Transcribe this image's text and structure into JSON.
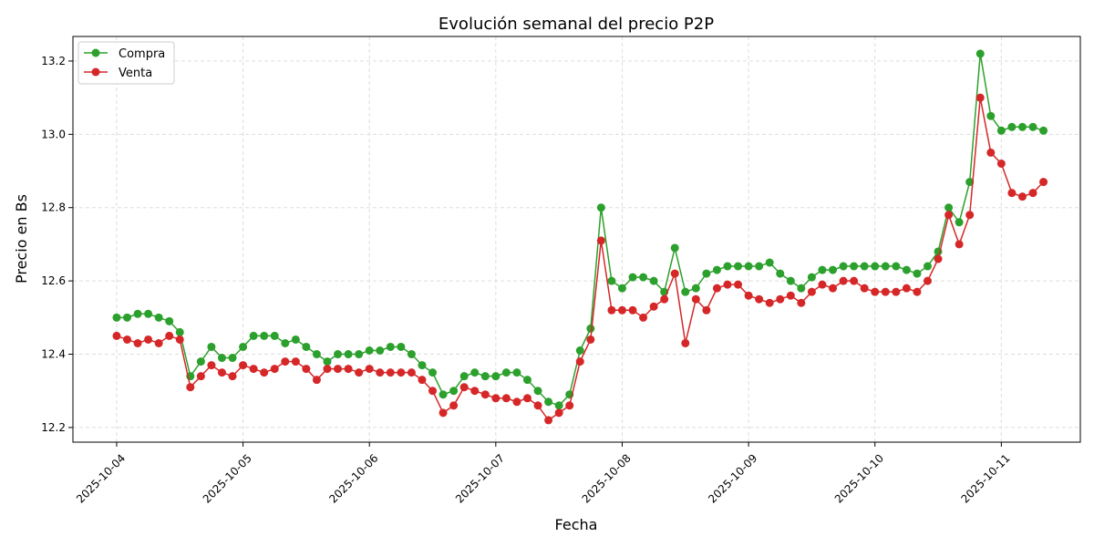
{
  "chart_data": {
    "type": "line",
    "title": "Evolución semanal del precio P2P",
    "xlabel": "Fecha",
    "ylabel": "Precio en Bs",
    "xlim": [
      "2025-10-03 15:42",
      "2025-10-11 15:00"
    ],
    "ylim": [
      12.16,
      13.267
    ],
    "grid": true,
    "legend_position": "top-left",
    "x_ticks": [
      "2025-10-04",
      "2025-10-05",
      "2025-10-06",
      "2025-10-07",
      "2025-10-08",
      "2025-10-09",
      "2025-10-10",
      "2025-10-11"
    ],
    "y_ticks": [
      12.2,
      12.4,
      12.6,
      12.8,
      13.0,
      13.2
    ],
    "x": [
      "2025-10-04 00:00",
      "2025-10-04 02:00",
      "2025-10-04 04:00",
      "2025-10-04 06:00",
      "2025-10-04 08:00",
      "2025-10-04 10:00",
      "2025-10-04 12:00",
      "2025-10-04 14:00",
      "2025-10-04 16:00",
      "2025-10-04 18:00",
      "2025-10-04 20:00",
      "2025-10-04 22:00",
      "2025-10-05 00:00",
      "2025-10-05 02:00",
      "2025-10-05 04:00",
      "2025-10-05 06:00",
      "2025-10-05 08:00",
      "2025-10-05 10:00",
      "2025-10-05 12:00",
      "2025-10-05 14:00",
      "2025-10-05 16:00",
      "2025-10-05 18:00",
      "2025-10-05 20:00",
      "2025-10-05 22:00",
      "2025-10-06 00:00",
      "2025-10-06 02:00",
      "2025-10-06 04:00",
      "2025-10-06 06:00",
      "2025-10-06 08:00",
      "2025-10-06 10:00",
      "2025-10-06 12:00",
      "2025-10-06 14:00",
      "2025-10-06 16:00",
      "2025-10-06 18:00",
      "2025-10-06 20:00",
      "2025-10-06 22:00",
      "2025-10-07 00:00",
      "2025-10-07 02:00",
      "2025-10-07 04:00",
      "2025-10-07 06:00",
      "2025-10-07 08:00",
      "2025-10-07 10:00",
      "2025-10-07 12:00",
      "2025-10-07 14:00",
      "2025-10-07 16:00",
      "2025-10-07 18:00",
      "2025-10-07 20:00",
      "2025-10-07 22:00",
      "2025-10-08 00:00",
      "2025-10-08 02:00",
      "2025-10-08 04:00",
      "2025-10-08 06:00",
      "2025-10-08 08:00",
      "2025-10-08 10:00",
      "2025-10-08 12:00",
      "2025-10-08 14:00",
      "2025-10-08 16:00",
      "2025-10-08 18:00",
      "2025-10-08 20:00",
      "2025-10-08 22:00",
      "2025-10-09 00:00",
      "2025-10-09 02:00",
      "2025-10-09 04:00",
      "2025-10-09 06:00",
      "2025-10-09 08:00",
      "2025-10-09 10:00",
      "2025-10-09 12:00",
      "2025-10-09 14:00",
      "2025-10-09 16:00",
      "2025-10-09 18:00",
      "2025-10-09 20:00",
      "2025-10-09 22:00",
      "2025-10-10 00:00",
      "2025-10-10 02:00",
      "2025-10-10 04:00",
      "2025-10-10 06:00",
      "2025-10-10 08:00",
      "2025-10-10 10:00",
      "2025-10-10 12:00",
      "2025-10-10 14:00",
      "2025-10-10 16:00",
      "2025-10-10 18:00",
      "2025-10-10 20:00",
      "2025-10-10 22:00",
      "2025-10-11 00:00",
      "2025-10-11 02:00",
      "2025-10-11 04:00",
      "2025-10-11 06:00",
      "2025-10-11 08:00"
    ],
    "series": [
      {
        "name": "Compra",
        "color": "#2ca02c",
        "marker": "circle",
        "values": [
          12.5,
          12.5,
          12.51,
          12.51,
          12.5,
          12.49,
          12.46,
          12.34,
          12.38,
          12.42,
          12.39,
          12.39,
          12.42,
          12.45,
          12.45,
          12.45,
          12.43,
          12.44,
          12.42,
          12.4,
          12.38,
          12.4,
          12.4,
          12.4,
          12.41,
          12.41,
          12.42,
          12.42,
          12.4,
          12.37,
          12.35,
          12.29,
          12.3,
          12.34,
          12.35,
          12.34,
          12.34,
          12.35,
          12.35,
          12.33,
          12.3,
          12.27,
          12.26,
          12.29,
          12.41,
          12.47,
          12.8,
          12.6,
          12.58,
          12.61,
          12.61,
          12.6,
          12.57,
          12.69,
          12.57,
          12.58,
          12.62,
          12.63,
          12.64,
          12.64,
          12.64,
          12.64,
          12.65,
          12.62,
          12.6,
          12.58,
          12.61,
          12.63,
          12.63,
          12.64,
          12.64,
          12.64,
          12.64,
          12.64,
          12.64,
          12.63,
          12.62,
          12.64,
          12.68,
          12.8,
          12.76,
          12.87,
          13.22,
          13.05,
          13.01,
          13.02,
          13.02,
          13.02,
          13.01
        ]
      },
      {
        "name": "Venta",
        "color": "#d62728",
        "marker": "circle",
        "values": [
          12.45,
          12.44,
          12.43,
          12.44,
          12.43,
          12.45,
          12.44,
          12.31,
          12.34,
          12.37,
          12.35,
          12.34,
          12.37,
          12.36,
          12.35,
          12.36,
          12.38,
          12.38,
          12.36,
          12.33,
          12.36,
          12.36,
          12.36,
          12.35,
          12.36,
          12.35,
          12.35,
          12.35,
          12.35,
          12.33,
          12.3,
          12.24,
          12.26,
          12.31,
          12.3,
          12.29,
          12.28,
          12.28,
          12.27,
          12.28,
          12.26,
          12.22,
          12.24,
          12.26,
          12.38,
          12.44,
          12.71,
          12.52,
          12.52,
          12.52,
          12.5,
          12.53,
          12.55,
          12.62,
          12.43,
          12.55,
          12.52,
          12.58,
          12.59,
          12.59,
          12.56,
          12.55,
          12.54,
          12.55,
          12.56,
          12.54,
          12.57,
          12.59,
          12.58,
          12.6,
          12.6,
          12.58,
          12.57,
          12.57,
          12.57,
          12.58,
          12.57,
          12.6,
          12.66,
          12.78,
          12.7,
          12.78,
          13.1,
          12.95,
          12.92,
          12.84,
          12.83,
          12.84,
          12.87
        ]
      }
    ]
  }
}
